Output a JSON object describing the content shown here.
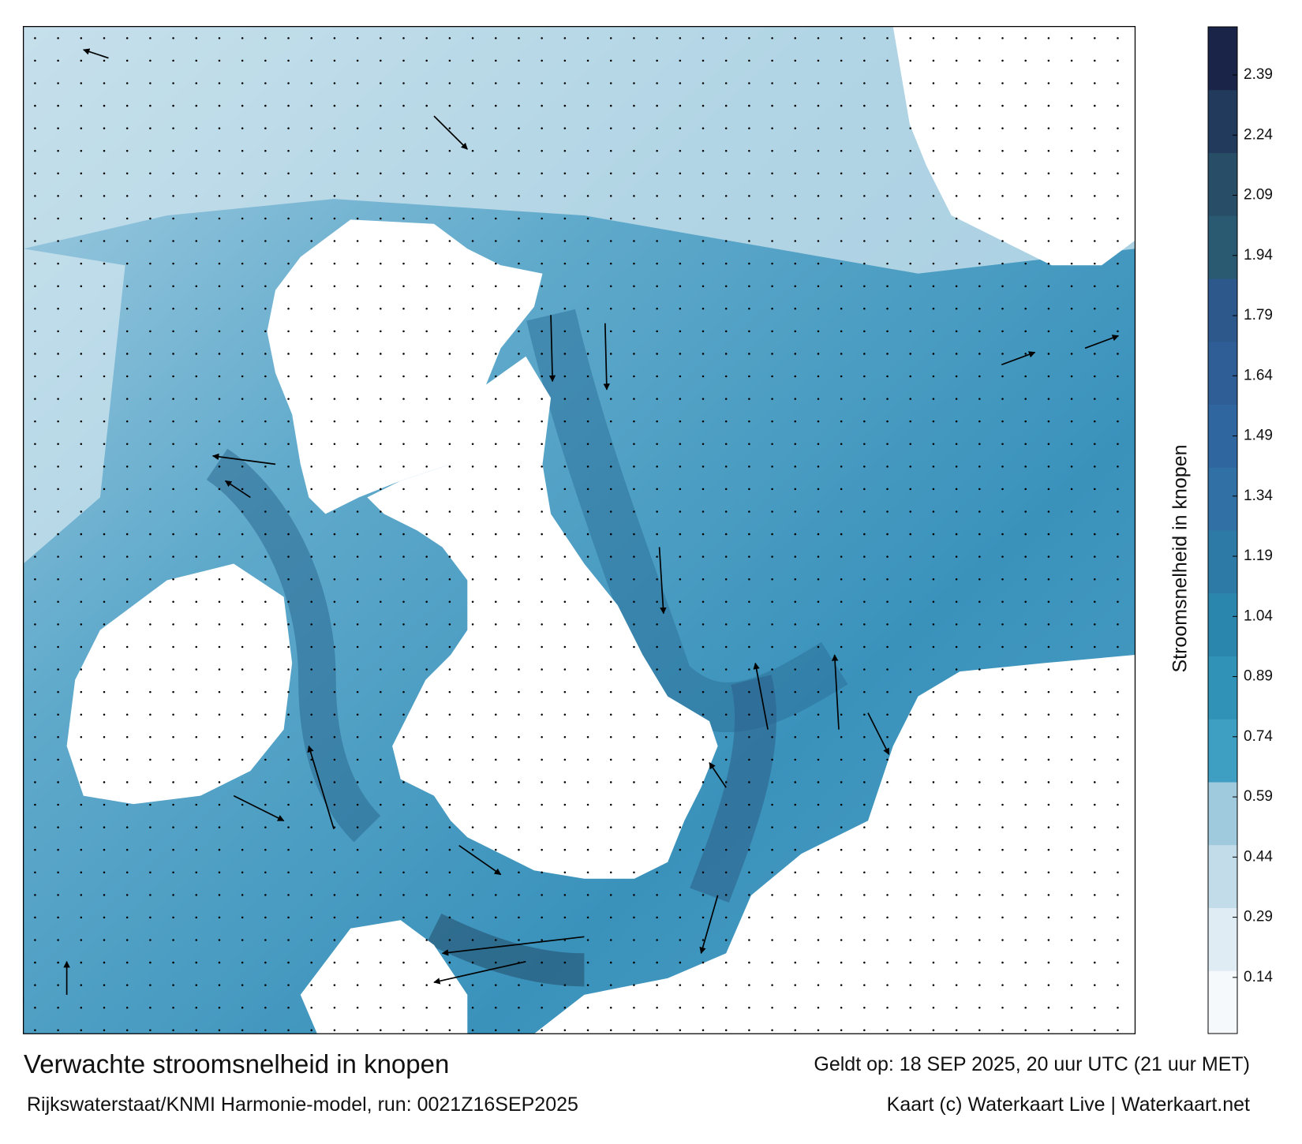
{
  "map": {
    "title": "Verwachte stroomsnelheid in knopen",
    "valid_time": "Geldt op: 18 SEP 2025, 20 uur UTC (21 uur MET)",
    "source": "Rijkswaterstaat/KNMI Harmonie-model, run: 0021Z16SEP2025",
    "credit": "Kaart (c) Waterkaart Live | Waterkaart.net"
  },
  "colorbar": {
    "label": "Stroomsnelheid in knopen",
    "lim": [
      0,
      2.51
    ],
    "ticks": [
      0.14,
      0.29,
      0.44,
      0.59,
      0.74,
      0.89,
      1.04,
      1.19,
      1.34,
      1.49,
      1.64,
      1.79,
      1.94,
      2.09,
      2.24,
      2.39
    ],
    "colors": [
      "#f5f9fb",
      "#dfecf3",
      "#c2dce9",
      "#9fc9dd",
      "#3e9fc2",
      "#2f92b6",
      "#2b86ad",
      "#2e7aa6",
      "#3070a4",
      "#30669f",
      "#2e5e95",
      "#2c588b",
      "#2a5a72",
      "#284e67",
      "#223b5d",
      "#1a2448"
    ]
  }
}
